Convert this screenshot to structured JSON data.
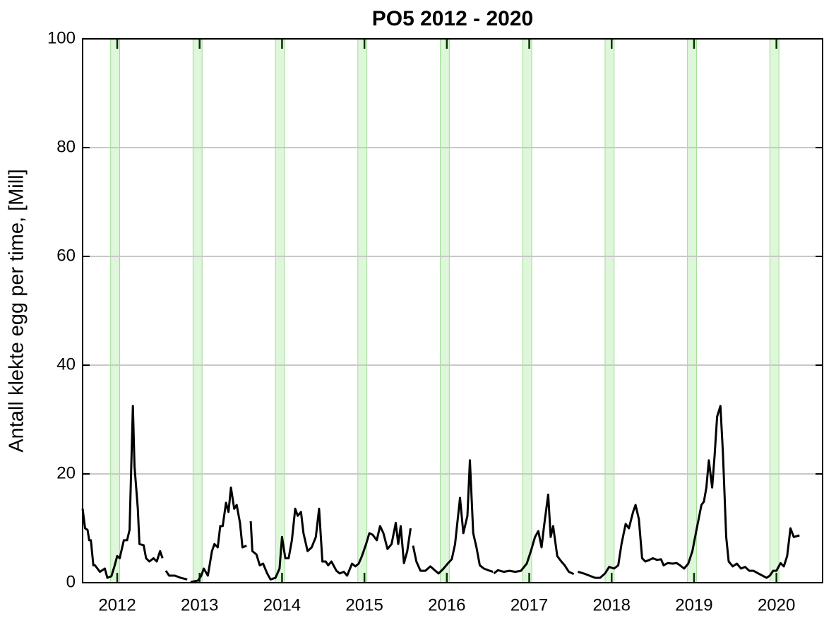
{
  "chart_data": {
    "type": "line",
    "title": "PO5 2012 - 2020",
    "y_label": "Antall klekte egg per time, [Mill]",
    "xlim": [
      2011.58,
      2020.56
    ],
    "ylim": [
      0,
      100
    ],
    "xticks": [
      2012,
      2013,
      2014,
      2015,
      2016,
      2017,
      2018,
      2019,
      2020
    ],
    "yticks": [
      0,
      20,
      40,
      60,
      80,
      100
    ],
    "grid": true,
    "bands": [
      [
        2011.92,
        2012.03
      ],
      [
        2012.92,
        2013.03
      ],
      [
        2013.92,
        2014.03
      ],
      [
        2014.92,
        2015.03
      ],
      [
        2015.92,
        2016.03
      ],
      [
        2016.92,
        2017.03
      ],
      [
        2017.92,
        2018.03
      ],
      [
        2018.92,
        2019.03
      ],
      [
        2019.92,
        2020.03
      ]
    ],
    "band_color": "#c8f0c0",
    "series": [
      {
        "color": "#000000",
        "x": [
          2011.58,
          2011.61,
          2011.64,
          2011.66,
          2011.68,
          2011.71,
          2011.73,
          2011.76,
          2011.79,
          2011.85,
          2011.88,
          2011.93,
          2011.97,
          2012.0,
          2012.03,
          2012.08,
          2012.12,
          2012.15,
          2012.19,
          2012.21,
          2012.25,
          2012.27,
          2012.32,
          2012.35,
          2012.39,
          2012.44,
          2012.48,
          2012.52,
          2012.55,
          2012.57,
          2012.59,
          2012.63,
          2012.7,
          2012.77,
          2012.85,
          2012.87,
          2012.89,
          2012.98,
          2013.02,
          2013.05,
          2013.1,
          2013.15,
          2013.18,
          2013.22,
          2013.25,
          2013.28,
          2013.32,
          2013.35,
          2013.38,
          2013.42,
          2013.45,
          2013.49,
          2013.52,
          2013.57,
          2013.6,
          2013.62,
          2013.64,
          2013.69,
          2013.73,
          2013.77,
          2013.82,
          2013.86,
          2013.92,
          2013.97,
          2014.0,
          2014.04,
          2014.08,
          2014.12,
          2014.16,
          2014.19,
          2014.23,
          2014.26,
          2014.31,
          2014.36,
          2014.41,
          2014.45,
          2014.49,
          2014.53,
          2014.56,
          2014.6,
          2014.66,
          2014.7,
          2014.75,
          2014.79,
          2014.85,
          2014.89,
          2014.93,
          2014.97,
          2015.02,
          2015.06,
          2015.1,
          2015.15,
          2015.19,
          2015.23,
          2015.28,
          2015.33,
          2015.38,
          2015.41,
          2015.44,
          2015.48,
          2015.52,
          2015.56,
          2015.57,
          2015.59,
          2015.63,
          2015.68,
          2015.74,
          2015.8,
          2015.86,
          2015.9,
          2015.96,
          2016.01,
          2016.06,
          2016.1,
          2016.16,
          2016.2,
          2016.25,
          2016.28,
          2016.32,
          2016.36,
          2016.4,
          2016.45,
          2016.52,
          2016.56,
          2016.565,
          2016.57,
          2016.62,
          2016.69,
          2016.76,
          2016.83,
          2016.9,
          2016.97,
          2017.02,
          2017.07,
          2017.11,
          2017.15,
          2017.18,
          2017.23,
          2017.26,
          2017.29,
          2017.34,
          2017.39,
          2017.43,
          2017.48,
          2017.54,
          2017.56,
          2017.59,
          2017.66,
          2017.73,
          2017.8,
          2017.86,
          2017.92,
          2017.97,
          2018.03,
          2018.08,
          2018.12,
          2018.17,
          2018.21,
          2018.26,
          2018.29,
          2018.33,
          2018.37,
          2018.41,
          2018.46,
          2018.5,
          2018.55,
          2018.6,
          2018.63,
          2018.68,
          2018.74,
          2018.79,
          2018.83,
          2018.88,
          2018.93,
          2018.98,
          2019.03,
          2019.09,
          2019.12,
          2019.15,
          2019.18,
          2019.22,
          2019.25,
          2019.28,
          2019.32,
          2019.35,
          2019.39,
          2019.42,
          2019.47,
          2019.52,
          2019.57,
          2019.62,
          2019.67,
          2019.72,
          2019.78,
          2019.83,
          2019.88,
          2019.92,
          2019.96,
          2020.0,
          2020.05,
          2020.09,
          2020.13,
          2020.17,
          2020.21,
          2020.28
        ],
        "values": [
          13.6,
          10,
          9.7,
          7.8,
          7.8,
          3.2,
          3.2,
          2.6,
          2,
          2.6,
          0.9,
          1.2,
          3.2,
          4.9,
          4.5,
          7.8,
          7.8,
          9.7,
          32.5,
          21.4,
          13.6,
          7.1,
          6.9,
          4.5,
          3.9,
          4.5,
          3.9,
          5.8,
          4.5,
          null,
          2.2,
          1.3,
          1.3,
          0.9,
          0.6,
          null,
          0.1,
          0.4,
          1.3,
          2.6,
          1.3,
          5.8,
          7.1,
          6.5,
          10.4,
          10.4,
          14.7,
          13,
          17.5,
          13.6,
          14.3,
          11,
          6.5,
          6.8,
          null,
          11.3,
          5.8,
          5.2,
          3.2,
          3.5,
          1.7,
          0.6,
          0.9,
          2.6,
          8.4,
          4.5,
          4.5,
          7.8,
          13.6,
          12.3,
          13,
          9.1,
          5.8,
          6.5,
          8.4,
          13.6,
          3.9,
          3.9,
          3.2,
          3.9,
          2.2,
          1.7,
          2,
          1.3,
          3.5,
          3,
          3.5,
          4.9,
          7.1,
          9.1,
          8.8,
          7.8,
          10.4,
          9.1,
          6.2,
          7.1,
          11,
          7.1,
          10.4,
          3.6,
          5.8,
          10,
          null,
          6.8,
          3.9,
          2.2,
          2.2,
          3,
          2.2,
          1.7,
          2.6,
          3.5,
          4.3,
          7.1,
          15.6,
          9.1,
          12.3,
          22.5,
          9.1,
          6.5,
          3.2,
          2.6,
          2.2,
          2,
          null,
          1.7,
          2.3,
          2,
          2.2,
          2,
          2.2,
          3.5,
          5.8,
          8.4,
          9.5,
          6.5,
          10.4,
          16.2,
          8.4,
          10.4,
          4.9,
          3.9,
          3.2,
          2,
          1.6,
          null,
          2,
          1.7,
          1.3,
          0.9,
          0.9,
          1.7,
          2.9,
          2.6,
          3.2,
          7.1,
          10.8,
          10,
          13,
          14.3,
          11.7,
          4.5,
          3.9,
          4.2,
          4.5,
          4.2,
          4.3,
          3.2,
          3.6,
          3.5,
          3.6,
          3.2,
          2.6,
          3.5,
          5.8,
          9.7,
          14.3,
          14.9,
          17.5,
          22.5,
          17.5,
          23.4,
          30.5,
          32.5,
          24,
          8.4,
          3.9,
          3,
          3.5,
          2.6,
          2.9,
          2.2,
          2.2,
          1.7,
          1.3,
          0.9,
          1.3,
          2.2,
          2.2,
          3.6,
          3,
          4.9,
          10,
          8.4,
          8.7
        ]
      }
    ]
  }
}
